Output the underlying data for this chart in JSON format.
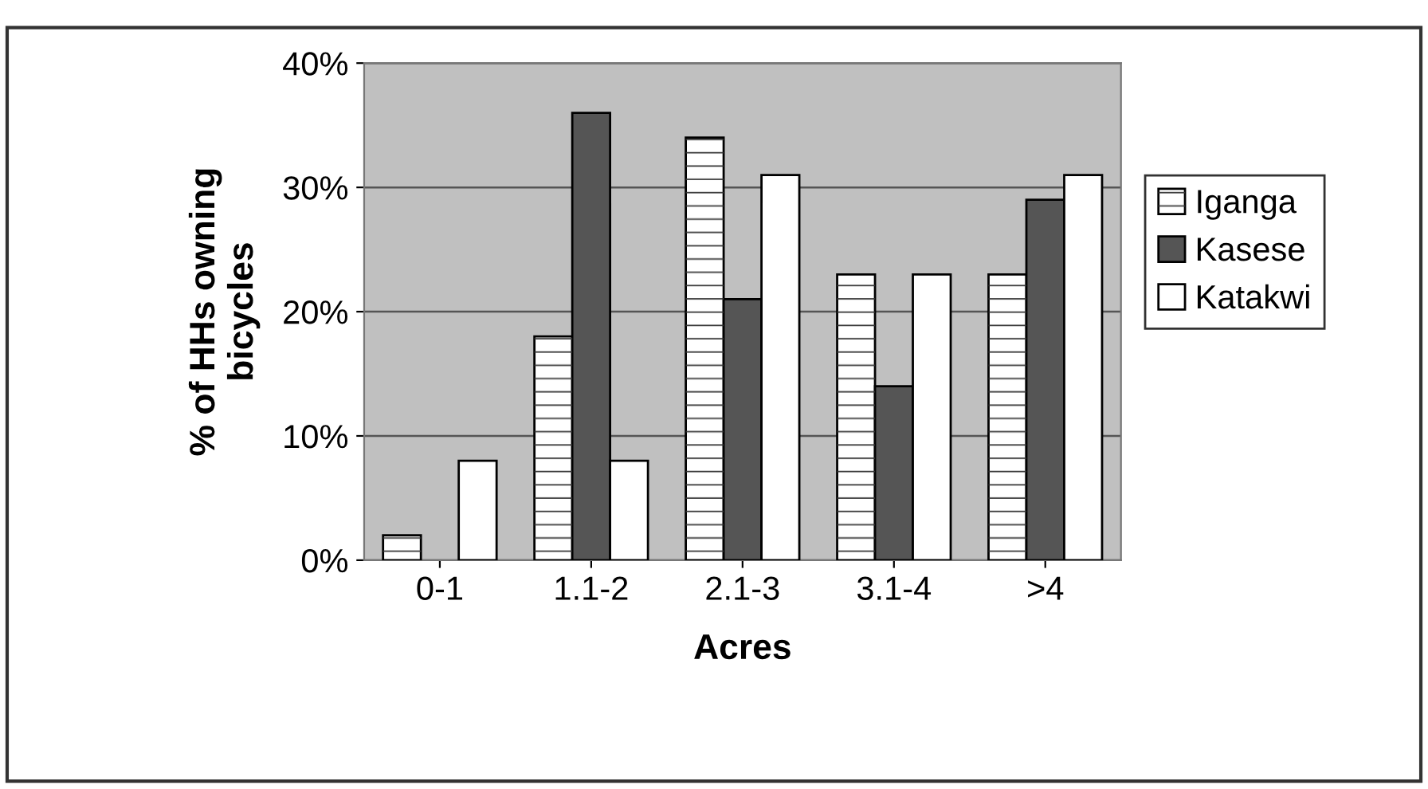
{
  "chart_data": {
    "type": "bar",
    "xlabel": "Acres",
    "ylabel": "% of HHs owning\nbicycles",
    "categories": [
      "0-1",
      "1.1-2",
      "2.1-3",
      "3.1-4",
      ">4"
    ],
    "series": [
      {
        "name": "Iganga",
        "color": "#ffffff",
        "values": [
          2,
          18,
          34,
          23,
          23
        ]
      },
      {
        "name": "Kasese",
        "color": "#555555",
        "values": [
          0,
          36,
          21,
          14,
          29
        ]
      },
      {
        "name": "Katakwi",
        "color": "#ffffff",
        "values": [
          8,
          8,
          31,
          23,
          31
        ]
      }
    ],
    "ylim": [
      0,
      40
    ],
    "yticks": [
      {
        "value": 0,
        "label": "0%"
      },
      {
        "value": 10,
        "label": "10%"
      },
      {
        "value": 20,
        "label": "20%"
      },
      {
        "value": 30,
        "label": "30%"
      },
      {
        "value": 40,
        "label": "40%"
      }
    ],
    "grid": "y",
    "legend": "right"
  }
}
